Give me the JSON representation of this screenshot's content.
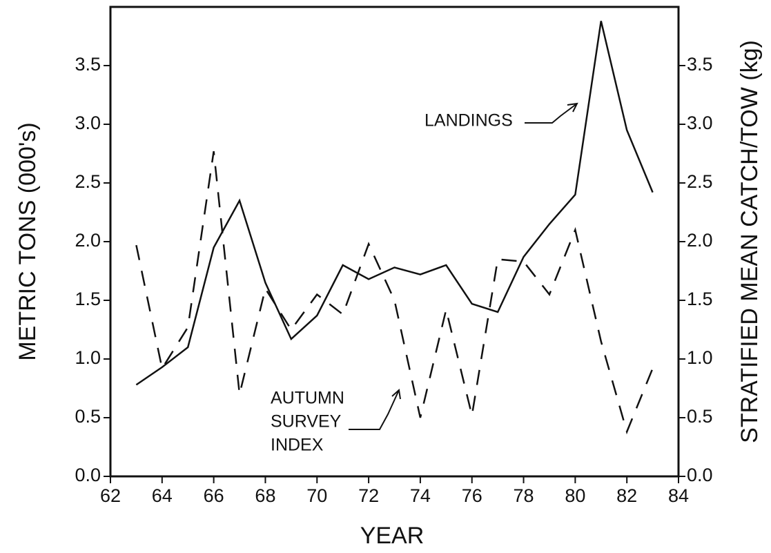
{
  "chart_data": {
    "type": "line",
    "xlabel": "YEAR",
    "ylabel": "METRIC TONS (000's)",
    "y2label": "STRATIFIED MEAN CATCH/TOW (kg)",
    "x": [
      63,
      64,
      65,
      66,
      67,
      68,
      69,
      70,
      71,
      72,
      73,
      74,
      75,
      76,
      77,
      78,
      79,
      80,
      81,
      82,
      83
    ],
    "series": [
      {
        "name": "LANDINGS",
        "color": "#111111",
        "linestyle": "solid",
        "values": [
          0.78,
          0.93,
          1.1,
          1.95,
          2.35,
          1.65,
          1.17,
          1.37,
          1.8,
          1.68,
          1.78,
          1.72,
          1.8,
          1.47,
          1.4,
          1.87,
          2.15,
          2.4,
          3.88,
          2.95,
          2.42
        ]
      },
      {
        "name": "AUTUMN SURVEY INDEX",
        "color": "#111111",
        "linestyle": "dashed",
        "axis": "y2",
        "values": [
          1.97,
          0.92,
          1.27,
          2.77,
          0.7,
          1.6,
          1.25,
          1.55,
          1.38,
          1.98,
          1.5,
          0.5,
          1.42,
          0.52,
          1.85,
          1.83,
          1.55,
          2.1,
          1.15,
          0.38,
          0.92
        ]
      }
    ],
    "annotations": [
      [
        "LANDINGS"
      ],
      [
        "AUTUMN",
        "SURVEY",
        "INDEX"
      ]
    ],
    "xlim": [
      62,
      84
    ],
    "xticks": [
      62,
      64,
      66,
      68,
      70,
      72,
      74,
      76,
      78,
      80,
      82,
      84
    ],
    "ylim": [
      0,
      4
    ],
    "yticks": [
      {
        "value": 0,
        "label": "0.0"
      },
      0.5,
      {
        "value": 1,
        "label": "1.0"
      },
      1.5,
      {
        "value": 2,
        "label": "2.0"
      },
      2.5,
      {
        "value": 3,
        "label": "3.0"
      },
      3.5
    ],
    "y2lim": [
      0,
      4
    ],
    "y2ticks": [
      {
        "value": 0,
        "label": "0.0"
      },
      0.5,
      {
        "value": 1,
        "label": "1.0"
      },
      1.5,
      {
        "value": 2,
        "label": "2.0"
      },
      2.5,
      {
        "value": 3,
        "label": "3.0"
      },
      3.5
    ]
  }
}
